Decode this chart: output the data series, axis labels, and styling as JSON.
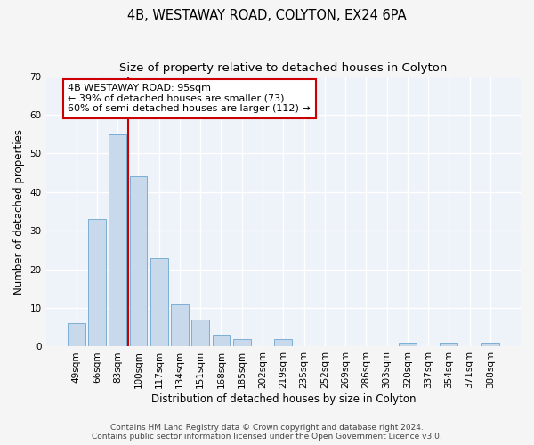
{
  "title": "4B, WESTAWAY ROAD, COLYTON, EX24 6PA",
  "subtitle": "Size of property relative to detached houses in Colyton",
  "xlabel": "Distribution of detached houses by size in Colyton",
  "ylabel": "Number of detached properties",
  "bar_color": "#c9d9ec",
  "bar_edge_color": "#7aafd4",
  "categories": [
    "49sqm",
    "66sqm",
    "83sqm",
    "100sqm",
    "117sqm",
    "134sqm",
    "151sqm",
    "168sqm",
    "185sqm",
    "202sqm",
    "219sqm",
    "235sqm",
    "252sqm",
    "269sqm",
    "286sqm",
    "303sqm",
    "320sqm",
    "337sqm",
    "354sqm",
    "371sqm",
    "388sqm"
  ],
  "values": [
    6,
    33,
    55,
    44,
    23,
    11,
    7,
    3,
    2,
    0,
    2,
    0,
    0,
    0,
    0,
    0,
    1,
    0,
    1,
    0,
    1
  ],
  "ylim": [
    0,
    70
  ],
  "yticks": [
    0,
    10,
    20,
    30,
    40,
    50,
    60,
    70
  ],
  "vline_x": 2.5,
  "vline_color": "#cc0000",
  "annotation_text": "4B WESTAWAY ROAD: 95sqm\n← 39% of detached houses are smaller (73)\n60% of semi-detached houses are larger (112) →",
  "annotation_box_color": "#ffffff",
  "annotation_box_edge": "#cc0000",
  "footer_line1": "Contains HM Land Registry data © Crown copyright and database right 2024.",
  "footer_line2": "Contains public sector information licensed under the Open Government Licence v3.0.",
  "bg_color": "#eef2f9",
  "grid_color": "#ffffff",
  "title_fontsize": 10.5,
  "subtitle_fontsize": 9.5,
  "axis_label_fontsize": 8.5,
  "tick_fontsize": 7.5,
  "annotation_fontsize": 8,
  "footer_fontsize": 6.5
}
